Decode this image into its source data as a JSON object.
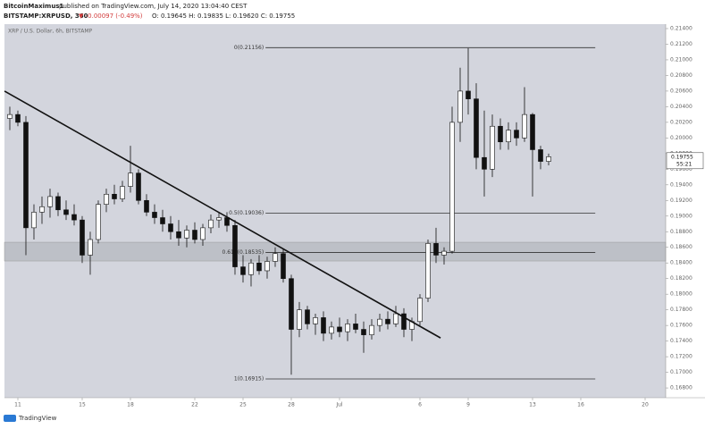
{
  "header": {
    "publisher": "BitcoinMaximus1",
    "published": "published on TradingView.com, July 14, 2020 13:04:40 CEST",
    "symbol": "BITSTAMP:XRPUSD, 360",
    "change": "▼ -0.00097 (-0.49%)",
    "ohlc": "O: 0.19645  H: 0.19835  L: 0.19620  C: 0.19755"
  },
  "footer": {
    "brand": "TradingView"
  },
  "chart_data": {
    "type": "candlestick",
    "title": "XRP / U.S. Dollar, 6h, BITSTAMP",
    "xlim": [
      -0.833,
      40.278
    ],
    "ylim": [
      0.16675,
      0.21457
    ],
    "xticks": [
      {
        "value": 0,
        "label": "11"
      },
      {
        "value": 4,
        "label": "15"
      },
      {
        "value": 7,
        "label": "18"
      },
      {
        "value": 11,
        "label": "22"
      },
      {
        "value": 14,
        "label": "25"
      },
      {
        "value": 17,
        "label": "28"
      },
      {
        "value": 20,
        "label": "Jul"
      },
      {
        "value": 25,
        "label": "6"
      },
      {
        "value": 28,
        "label": "9"
      },
      {
        "value": 32,
        "label": "13"
      },
      {
        "value": 35,
        "label": "16"
      },
      {
        "value": 39,
        "label": "20"
      }
    ],
    "yticks": [
      {
        "value": 0.168,
        "label": "0.16800"
      },
      {
        "value": 0.17,
        "label": "0.17000"
      },
      {
        "value": 0.172,
        "label": "0.17200"
      },
      {
        "value": 0.174,
        "label": "0.17400"
      },
      {
        "value": 0.176,
        "label": "0.17600"
      },
      {
        "value": 0.178,
        "label": "0.17800"
      },
      {
        "value": 0.18,
        "label": "0.18000"
      },
      {
        "value": 0.182,
        "label": "0.18200"
      },
      {
        "value": 0.184,
        "label": "0.18400"
      },
      {
        "value": 0.186,
        "label": "0.18600"
      },
      {
        "value": 0.188,
        "label": "0.18800"
      },
      {
        "value": 0.19,
        "label": "0.19000"
      },
      {
        "value": 0.192,
        "label": "0.19200"
      },
      {
        "value": 0.194,
        "label": "0.19400"
      },
      {
        "value": 0.196,
        "label": "0.19600"
      },
      {
        "value": 0.198,
        "label": "0.19800"
      },
      {
        "value": 0.2,
        "label": "0.20000"
      },
      {
        "value": 0.202,
        "label": "0.20200"
      },
      {
        "value": 0.204,
        "label": "0.20400"
      },
      {
        "value": 0.206,
        "label": "0.20600"
      },
      {
        "value": 0.208,
        "label": "0.20800"
      },
      {
        "value": 0.21,
        "label": "0.21000"
      },
      {
        "value": 0.212,
        "label": "0.21200"
      },
      {
        "value": 0.214,
        "label": "0.21400"
      }
    ],
    "up_color": "#ffffff",
    "down_color": "#111111",
    "background": "#d3d5dd",
    "candles": {
      "x": [
        -0.5,
        0,
        0.5,
        1,
        1.5,
        2,
        2.5,
        3,
        3.5,
        4,
        4.5,
        5,
        5.5,
        6,
        6.5,
        7,
        7.5,
        8,
        8.5,
        9,
        9.5,
        10,
        10.5,
        11,
        11.5,
        12,
        12.5,
        13,
        13.5,
        14,
        14.5,
        15,
        15.5,
        16,
        16.5,
        17,
        17.5,
        18,
        18.5,
        19,
        19.5,
        20,
        20.5,
        21,
        21.5,
        22,
        22.5,
        23,
        23.5,
        24,
        24.5,
        25,
        25.5,
        26,
        26.5,
        27,
        27.5,
        28,
        28.5,
        29,
        29.5,
        30,
        30.5,
        31,
        31.5,
        32,
        32.5,
        33
      ],
      "open": [
        0.2025,
        0.203,
        0.202,
        0.1885,
        0.1905,
        0.1912,
        0.1925,
        0.1908,
        0.1902,
        0.1895,
        0.185,
        0.187,
        0.1915,
        0.1928,
        0.1922,
        0.1938,
        0.1955,
        0.192,
        0.1905,
        0.1898,
        0.189,
        0.188,
        0.1872,
        0.1882,
        0.187,
        0.1885,
        0.1895,
        0.1898,
        0.1888,
        0.1835,
        0.1825,
        0.184,
        0.183,
        0.1842,
        0.1852,
        0.182,
        0.1755,
        0.178,
        0.1762,
        0.177,
        0.175,
        0.1758,
        0.1752,
        0.1762,
        0.1755,
        0.1748,
        0.176,
        0.1768,
        0.1762,
        0.1775,
        0.1755,
        0.1765,
        0.1795,
        0.1865,
        0.185,
        0.1855,
        0.202,
        0.206,
        0.205,
        0.1975,
        0.196,
        0.2015,
        0.1995,
        0.201,
        0.2,
        0.203,
        0.1985,
        0.197
      ],
      "high": [
        0.204,
        0.2035,
        0.2028,
        0.1915,
        0.1925,
        0.1935,
        0.193,
        0.192,
        0.1915,
        0.19,
        0.188,
        0.192,
        0.1935,
        0.194,
        0.1945,
        0.199,
        0.196,
        0.1928,
        0.1915,
        0.1908,
        0.19,
        0.1895,
        0.1888,
        0.1892,
        0.189,
        0.1902,
        0.1905,
        0.1905,
        0.1895,
        0.185,
        0.1845,
        0.185,
        0.1848,
        0.186,
        0.1858,
        0.1825,
        0.179,
        0.1785,
        0.1775,
        0.1778,
        0.1765,
        0.177,
        0.1768,
        0.1775,
        0.1765,
        0.1768,
        0.1775,
        0.1778,
        0.1785,
        0.1782,
        0.177,
        0.18,
        0.187,
        0.1885,
        0.186,
        0.204,
        0.209,
        0.2115,
        0.207,
        0.2035,
        0.203,
        0.2025,
        0.202,
        0.202,
        0.2065,
        0.2032,
        0.199,
        0.198
      ],
      "low": [
        0.201,
        0.2015,
        0.185,
        0.187,
        0.189,
        0.1898,
        0.19,
        0.1895,
        0.1888,
        0.184,
        0.1825,
        0.1865,
        0.1905,
        0.1915,
        0.1918,
        0.193,
        0.1915,
        0.19,
        0.189,
        0.188,
        0.187,
        0.1862,
        0.186,
        0.1865,
        0.1862,
        0.1878,
        0.1885,
        0.188,
        0.1825,
        0.1815,
        0.181,
        0.1825,
        0.182,
        0.1835,
        0.1815,
        0.1697,
        0.1745,
        0.1755,
        0.1748,
        0.174,
        0.1742,
        0.1745,
        0.174,
        0.175,
        0.1725,
        0.1742,
        0.1752,
        0.1755,
        0.1758,
        0.1745,
        0.174,
        0.176,
        0.179,
        0.184,
        0.1838,
        0.1852,
        0.1995,
        0.203,
        0.196,
        0.1925,
        0.195,
        0.1985,
        0.1985,
        0.199,
        0.1995,
        0.1925,
        0.196,
        0.1965
      ],
      "close": [
        0.203,
        0.202,
        0.1885,
        0.1905,
        0.1912,
        0.1925,
        0.1908,
        0.1902,
        0.1895,
        0.185,
        0.187,
        0.1915,
        0.1928,
        0.1922,
        0.1938,
        0.1955,
        0.192,
        0.1905,
        0.1898,
        0.189,
        0.188,
        0.1872,
        0.1882,
        0.187,
        0.1885,
        0.1895,
        0.1898,
        0.1888,
        0.1835,
        0.1825,
        0.184,
        0.183,
        0.1842,
        0.1852,
        0.182,
        0.1755,
        0.178,
        0.1762,
        0.177,
        0.175,
        0.1758,
        0.1752,
        0.1762,
        0.1755,
        0.1748,
        0.176,
        0.1768,
        0.1762,
        0.1775,
        0.1755,
        0.1765,
        0.1795,
        0.1865,
        0.185,
        0.1855,
        0.202,
        0.206,
        0.205,
        0.1975,
        0.196,
        0.2015,
        0.1995,
        0.201,
        0.2,
        0.203,
        0.1985,
        0.197,
        0.1976
      ]
    },
    "fib_levels": [
      {
        "value": 0.21156,
        "label": "0(0.21156)"
      },
      {
        "value": 0.19036,
        "label": "0.5(0.19036)"
      },
      {
        "value": 0.18535,
        "label": "0.618(0.18535)"
      },
      {
        "value": 0.16915,
        "label": "1(0.16915)"
      }
    ],
    "fib_x": [
      15.4,
      35.9
    ],
    "trendline": {
      "x": [
        -0.83,
        26.28
      ],
      "y": [
        0.206,
        0.1744
      ]
    },
    "zone": [
      0.18425,
      0.18665
    ],
    "last_price": 0.19755,
    "countdown": "55:21"
  }
}
